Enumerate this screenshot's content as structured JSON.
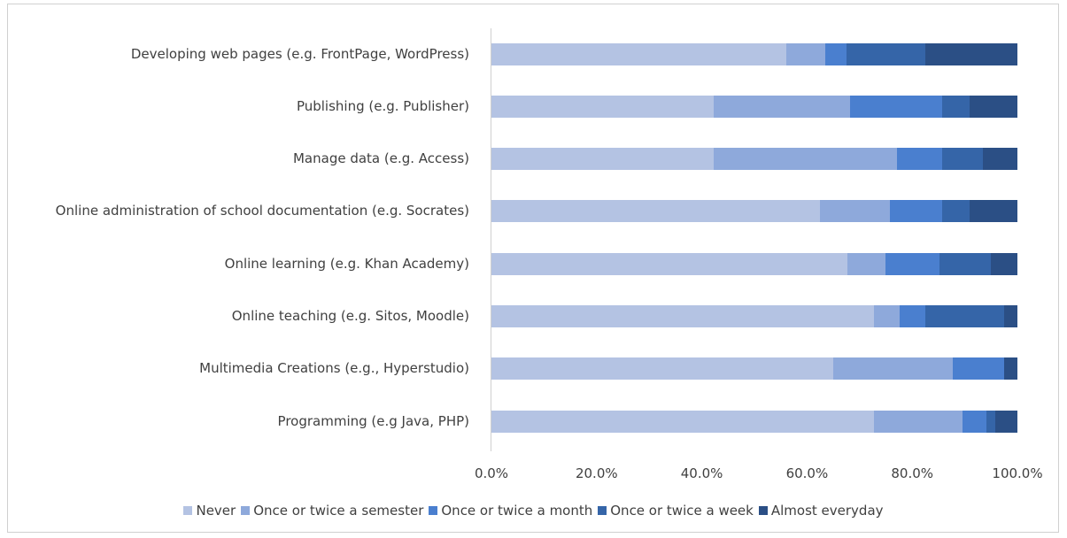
{
  "chart_data": {
    "type": "stacked-bar-horizontal",
    "categories": [
      "Developing web pages (e.g. FrontPage, WordPress)",
      "Publishing (e.g. Publisher)",
      "Manage data (e.g. Access)",
      "Online administration of school documentation  (e.g. Socrates)",
      "Online learning (e.g. Khan Academy)",
      "Online teaching (e.g. Sitos, Moodle)",
      "Multimedia Creations  (e.g., Hyperstudio)",
      "Programming (e.g  Java, PHP)"
    ],
    "series": [
      {
        "name": "Never",
        "color": "#b4c3e3",
        "values": [
          56,
          42.3,
          42.3,
          62.5,
          67.7,
          72.7,
          65,
          72.7
        ]
      },
      {
        "name": "Once or twice a semester",
        "color": "#8ea9db",
        "values": [
          7.5,
          25.9,
          34.8,
          13.3,
          7.2,
          4.9,
          22.7,
          16.9
        ]
      },
      {
        "name": "Once or twice a month",
        "color": "#4a7fcf",
        "values": [
          4,
          17.5,
          8.6,
          9.9,
          10.3,
          4.9,
          9.8,
          4.5
        ]
      },
      {
        "name": "Once or twice a week",
        "color": "#3565a8",
        "values": [
          15,
          5.2,
          7.7,
          5.2,
          9.7,
          15,
          0,
          1.7
        ]
      },
      {
        "name": "Almost everyday",
        "color": "#2b4f85",
        "values": [
          17.5,
          9.1,
          6.6,
          9.1,
          5.1,
          2.5,
          2.5,
          4.2
        ]
      }
    ],
    "xlim": [
      0,
      100
    ],
    "xticks": [
      {
        "value": 0,
        "label": "0.0%"
      },
      {
        "value": 20,
        "label": "20.0%"
      },
      {
        "value": 40,
        "label": "40.0%"
      },
      {
        "value": 60,
        "label": "60.0%"
      },
      {
        "value": 80,
        "label": "80.0%"
      },
      {
        "value": 100,
        "label": "100.0%"
      }
    ],
    "legend": "bottom"
  }
}
